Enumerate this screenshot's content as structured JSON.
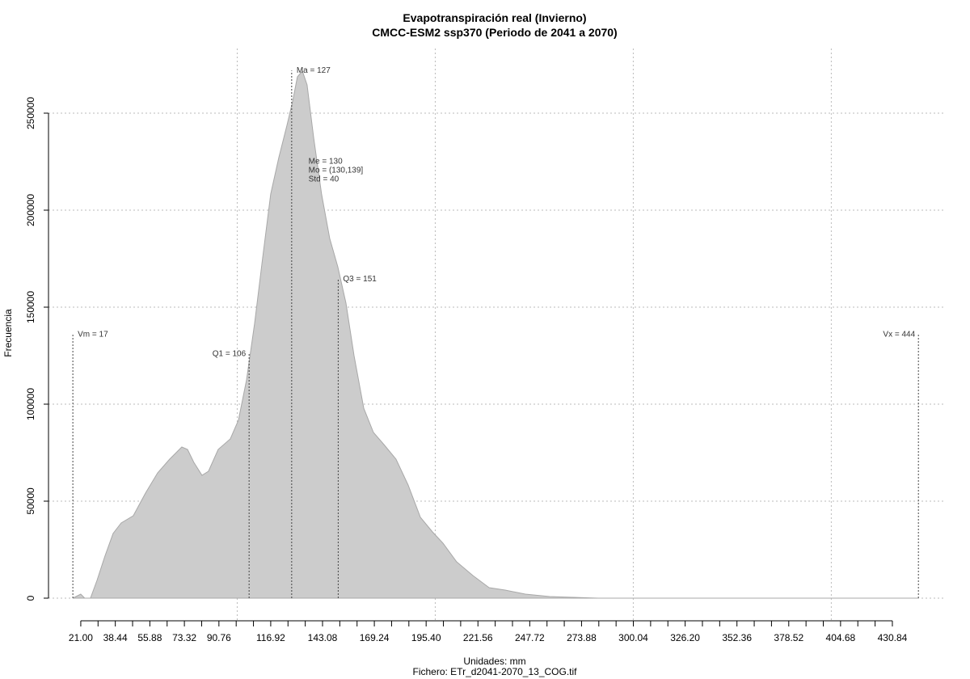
{
  "chart_data": {
    "type": "area",
    "title": "Evapotranspiración real (Invierno)",
    "subtitle": "CMCC-ESM2 ssp370 (Periodo de 2041 a 2070)",
    "x_label": "Unidades: mm",
    "y_label": "Frecuencia",
    "caption": "Fichero: ETr_d2041-2070_13_COG.tif",
    "color": "#cccccc",
    "grid": true,
    "x": [
      17,
      21.0,
      23.0,
      25.9,
      29.2,
      33.2,
      37.3,
      41.4,
      47.5,
      53.7,
      59.8,
      65.9,
      72.0,
      74.9,
      78.1,
      82.2,
      85.5,
      90.4,
      96.5,
      100.6,
      104.7,
      108.8,
      112.8,
      116.9,
      121.0,
      125.1,
      128.0,
      130.4,
      132.9,
      135.3,
      138.6,
      142.6,
      146.7,
      150.8,
      154.9,
      159.0,
      163.9,
      168.8,
      174.1,
      180.2,
      186.3,
      192.5,
      198.6,
      203.9,
      210.8,
      219.0,
      227.2,
      235.3,
      245.5,
      257.8,
      282.3,
      444
    ],
    "values": [
      0,
      2083,
      0,
      0,
      9167,
      21667,
      33333,
      38750,
      42500,
      54167,
      64583,
      71667,
      77917,
      76667,
      70000,
      63333,
      65417,
      76667,
      82083,
      91667,
      112500,
      141667,
      175000,
      208333,
      227083,
      243750,
      256250,
      268750,
      271667,
      264583,
      237500,
      208333,
      185417,
      170833,
      152083,
      125000,
      97917,
      85417,
      79167,
      71667,
      58333,
      41667,
      34167,
      28333,
      18750,
      11667,
      5417,
      4167,
      2083,
      833,
      0,
      0
    ],
    "xlim": [
      4.7,
      457.8
    ],
    "ylim": [
      -11667,
      283333
    ],
    "yticks": [
      0,
      50000,
      100000,
      150000,
      200000,
      250000
    ],
    "xticks": [
      {
        "value": 21,
        "label": "21.00"
      },
      38.44,
      55.88,
      73.32,
      90.76,
      116.92,
      143.08,
      169.24,
      {
        "value": 195.4,
        "label": "195.40"
      },
      221.56,
      247.72,
      273.88,
      300.04,
      {
        "value": 326.2,
        "label": "326.20"
      },
      352.36,
      378.52,
      404.68,
      430.84
    ],
    "xminorticks": [
      29.72,
      47.16,
      64.6,
      82.04,
      99.48,
      108.2,
      125.64,
      134.36,
      151.8,
      160.52,
      177.96,
      186.68,
      204.12,
      212.84,
      230.28,
      239,
      256.44,
      265.16,
      282.6,
      291.32,
      308.76,
      317.48,
      334.92,
      343.64,
      361.08,
      369.8,
      387.24,
      395.96,
      413.4,
      422.12
    ],
    "xgrid": [
      100,
      200,
      300,
      400
    ],
    "annotations": [
      {
        "label": "Vm = 17",
        "x": 17,
        "y": 136000,
        "line": true
      },
      {
        "label": "Q1 = 106",
        "x": 106,
        "y": 126000,
        "line": true,
        "side": "left"
      },
      {
        "label": "Ma = 127",
        "x": 127.5,
        "y": 272000,
        "line": true
      },
      {
        "label": "Q3 = 151",
        "x": 151,
        "y": 164500,
        "line": true
      },
      {
        "label": "Vx = 444",
        "x": 444,
        "y": 136000,
        "line": true,
        "side": "left"
      }
    ],
    "stats": [
      "Me = 130",
      "Mo = (130,139]",
      "Std = 40"
    ],
    "stats_position": {
      "x": 136,
      "y": 224000
    }
  }
}
